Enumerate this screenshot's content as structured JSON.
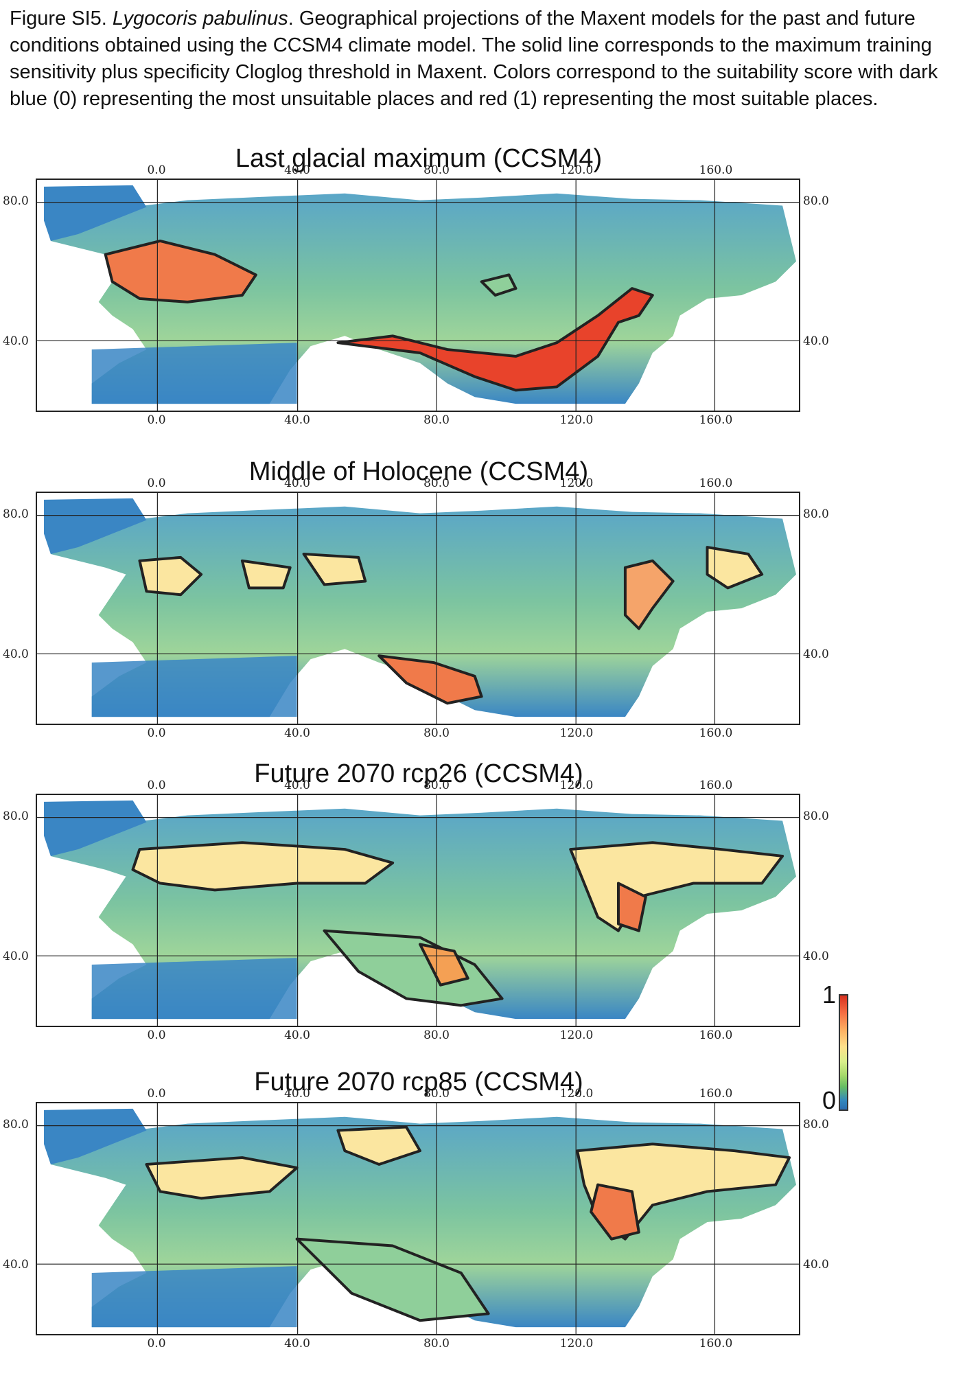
{
  "caption": {
    "prefix": "Figure SI5. ",
    "species": "Lygocoris pabulinus",
    "text": ". Geographical projections of the Maxent models for the past and future conditions obtained using the CCSM4 climate model. The solid line corresponds to the maximum training sensitivity plus specificity Cloglog threshold in Maxent. Colors correspond to the suitability score with dark blue (0) representing the most unsuitable places and red (1) representing the most suitable places."
  },
  "panels": [
    {
      "title": "Last glacial maximum (CCSM4)",
      "suitability": "lgm"
    },
    {
      "title": "Middle of Holocene (CCSM4)",
      "suitability": "mid"
    },
    {
      "title": "Future 2070 rcp26 (CCSM4)",
      "suitability": "rcp26"
    },
    {
      "title": "Future 2070 rcp85 (CCSM4)",
      "suitability": "rcp85"
    }
  ],
  "axes": {
    "lon_ticks": [
      "0.0",
      "40.0",
      "80.0",
      "120.0",
      "160.0"
    ],
    "lat_ticks": [
      "80.0",
      "40.0"
    ]
  },
  "colorbar": {
    "max_label": "1",
    "min_label": "0",
    "colors": [
      "#2b6cb0",
      "#3288bd",
      "#66bd63",
      "#a6d96a",
      "#d9ef8b",
      "#fee08b",
      "#fdae61",
      "#f46d43",
      "#d7301f"
    ]
  },
  "colors": {
    "ocean": "#ffffff",
    "low": "#3a86c4",
    "mid": "#8fcf9a",
    "high": "#fbe6a0",
    "hot": "#f07a4a",
    "contour": "#222222"
  }
}
